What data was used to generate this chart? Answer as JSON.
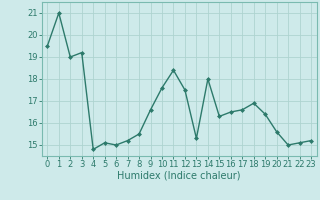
{
  "x": [
    0,
    1,
    2,
    3,
    4,
    5,
    6,
    7,
    8,
    9,
    10,
    11,
    12,
    13,
    14,
    15,
    16,
    17,
    18,
    19,
    20,
    21,
    22,
    23
  ],
  "y": [
    19.5,
    21.0,
    19.0,
    19.2,
    14.8,
    15.1,
    15.0,
    15.2,
    15.5,
    16.6,
    17.6,
    18.4,
    17.5,
    15.3,
    18.0,
    16.3,
    16.5,
    16.6,
    16.9,
    16.4,
    15.6,
    15.0,
    15.1,
    15.2
  ],
  "ylim": [
    14.5,
    21.5
  ],
  "yticks": [
    15,
    16,
    17,
    18,
    19,
    20,
    21
  ],
  "xticks": [
    0,
    1,
    2,
    3,
    4,
    5,
    6,
    7,
    8,
    9,
    10,
    11,
    12,
    13,
    14,
    15,
    16,
    17,
    18,
    19,
    20,
    21,
    22,
    23
  ],
  "xlabel": "Humidex (Indice chaleur)",
  "line_color": "#2d7a6b",
  "marker": "D",
  "marker_size": 2.0,
  "bg_color": "#ceeaea",
  "grid_color": "#aed4d0",
  "tick_color": "#2d7a6b",
  "label_color": "#2d7a6b",
  "axis_color": "#7abab0",
  "xlabel_fontsize": 7.0,
  "tick_fontsize": 6.0,
  "linewidth": 1.0
}
